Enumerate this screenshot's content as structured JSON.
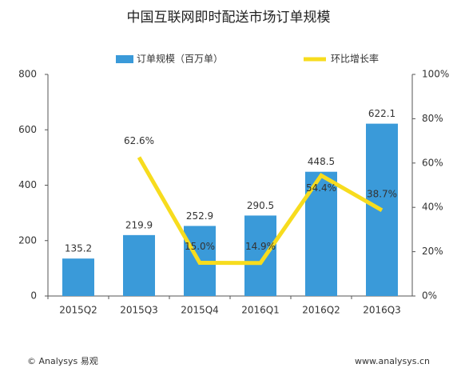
{
  "chart_data": {
    "type": "bar",
    "title": "中国互联网即时配送市场订单规模",
    "categories": [
      "2015Q2",
      "2015Q3",
      "2015Q4",
      "2016Q1",
      "2016Q2",
      "2016Q3"
    ],
    "series": [
      {
        "name": "订单规模（百万单）",
        "type": "bar",
        "color": "#3a9ad9",
        "values": [
          135.2,
          219.9,
          252.9,
          290.5,
          448.5,
          622.1
        ]
      },
      {
        "name": "环比增长率",
        "type": "line",
        "axis": "y2",
        "color": "#f7dc1e",
        "values": [
          null,
          62.6,
          15.0,
          14.9,
          54.4,
          38.7
        ],
        "value_labels": [
          null,
          "62.6%",
          "15.0%",
          "14.9%",
          "54.4%",
          "38.7%"
        ]
      }
    ],
    "ylim": [
      0,
      800
    ],
    "yticks": [
      0,
      200,
      400,
      600,
      800
    ],
    "y2lim": [
      0,
      100
    ],
    "y2ticks": [
      {
        "value": 0,
        "label": "0%"
      },
      {
        "value": 20,
        "label": "20%"
      },
      {
        "value": 40,
        "label": "40%"
      },
      {
        "value": 60,
        "label": "60%"
      },
      {
        "value": 80,
        "label": "80%"
      },
      {
        "value": 100,
        "label": "100%"
      }
    ],
    "legend": "top",
    "footer_left": "© Analysys 易观",
    "footer_right": "www.analysys.cn"
  }
}
